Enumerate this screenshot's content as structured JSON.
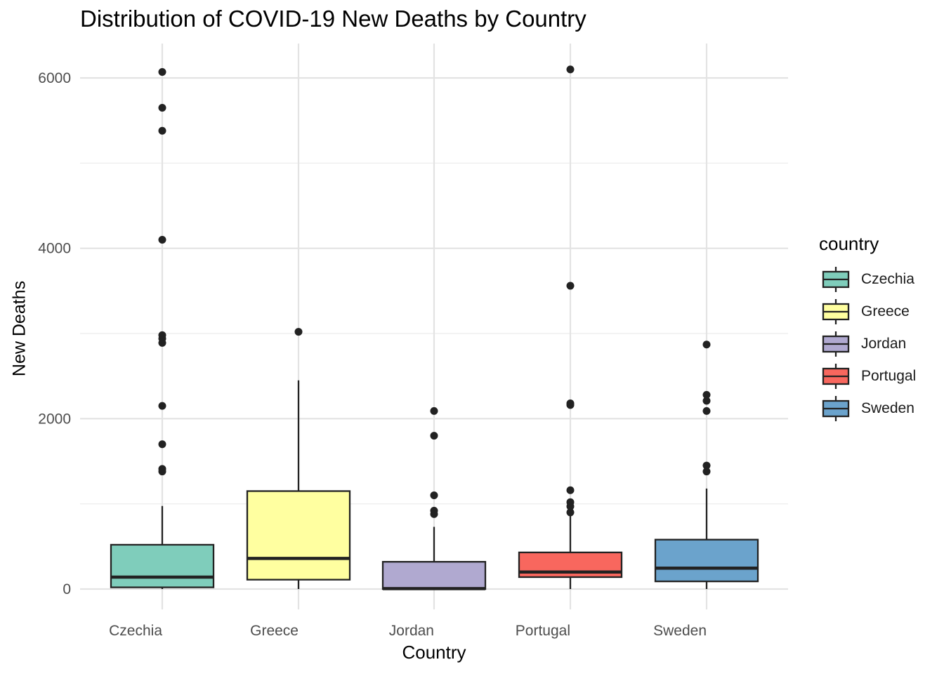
{
  "chart_data": {
    "type": "boxplot",
    "title": "Distribution of COVID-19 New Deaths by Country",
    "xlabel": "Country",
    "ylabel": "New Deaths",
    "ylim": [
      -280,
      6400
    ],
    "yticks": [
      0,
      2000,
      4000,
      6000
    ],
    "yticks_minor": [
      1000,
      3000,
      5000
    ],
    "grid": true,
    "legend": {
      "title": "country",
      "placement": "right"
    },
    "categories": [
      "Czechia",
      "Greece",
      "Jordan",
      "Portugal",
      "Sweden"
    ],
    "series": [
      {
        "name": "Czechia",
        "color": "#7FCDBB",
        "min": 0,
        "q1": 20,
        "median": 140,
        "q3": 520,
        "max": 975,
        "outliers": [
          1380,
          1410,
          1700,
          2150,
          2890,
          2940,
          2980,
          4100,
          5380,
          5650,
          6070
        ]
      },
      {
        "name": "Greece",
        "color": "#FFFFA0",
        "min": 0,
        "q1": 110,
        "median": 360,
        "q3": 1150,
        "max": 2450,
        "outliers": [
          3020
        ]
      },
      {
        "name": "Jordan",
        "color": "#B0A9D0",
        "min": 0,
        "q1": 0,
        "median": 5,
        "q3": 320,
        "max": 730,
        "outliers": [
          880,
          920,
          1100,
          1800,
          2090
        ]
      },
      {
        "name": "Portugal",
        "color": "#F8675E",
        "min": 0,
        "q1": 140,
        "median": 200,
        "q3": 430,
        "max": 870,
        "outliers": [
          900,
          970,
          1020,
          1160,
          2160,
          2180,
          3560,
          6100
        ]
      },
      {
        "name": "Sweden",
        "color": "#6BA3CC",
        "min": 0,
        "q1": 90,
        "median": 245,
        "q3": 580,
        "max": 1180,
        "outliers": [
          1380,
          1450,
          2090,
          2210,
          2280,
          2870
        ]
      }
    ]
  }
}
